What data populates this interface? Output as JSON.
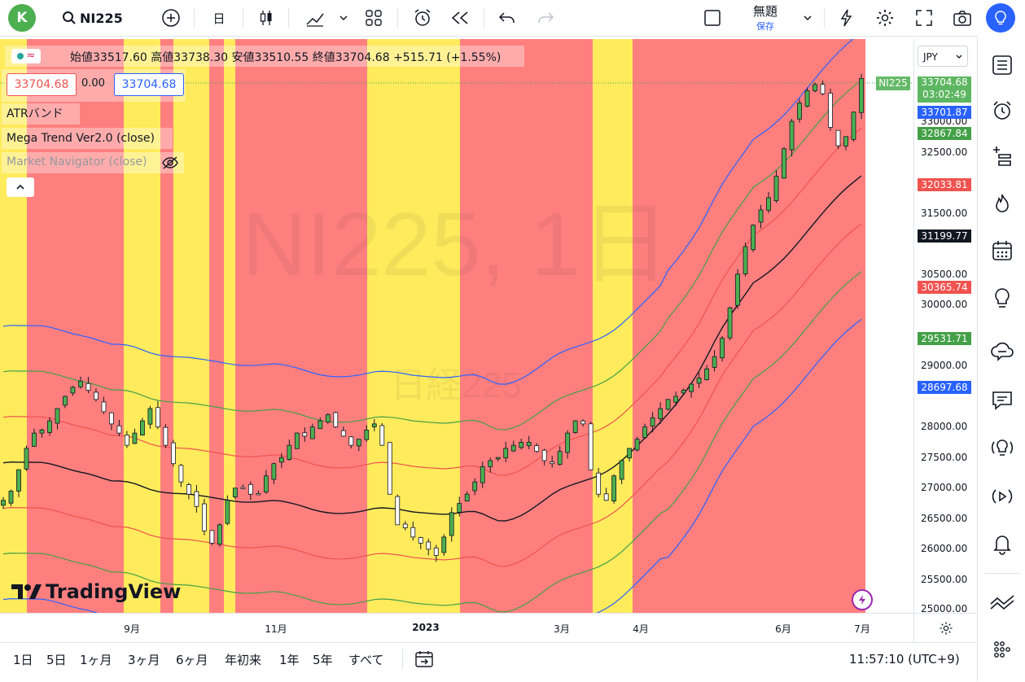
{
  "toolbar": {
    "avatar_letter": "K",
    "symbol": "NI225",
    "interval": "日",
    "layout_name": "無題",
    "save_label": "保存"
  },
  "legend": {
    "ohlc": {
      "open_label": "始値",
      "open": "33517.60",
      "high_label": "高値",
      "high": "33738.30",
      "low_label": "安値",
      "low": "33510.55",
      "close_label": "終値",
      "close": "33704.68",
      "change": "+515.71 (+1.55%)"
    },
    "sell_price": "33704.68",
    "spread": "0.00",
    "buy_price": "33704.68",
    "indicators": [
      "ATRバンド",
      "Mega Trend Ver2.0 (close)",
      "Market Navigator (close)"
    ]
  },
  "watermark": {
    "main": "NI225, 1日",
    "sub": "日経225"
  },
  "currency": "JPY",
  "symbol_tag": "NI225",
  "price_axis": {
    "labels": [
      "33000.00",
      "32500.00",
      "31500.00",
      "30500.00",
      "30000.00",
      "29000.00",
      "28000.00",
      "27500.00",
      "27000.00",
      "26500.00",
      "26000.00",
      "25500.00",
      "25000.00"
    ],
    "last_price": "33704.68",
    "countdown": "03:02:49",
    "tags": [
      {
        "value": "33701.87",
        "color": "#2962ff"
      },
      {
        "value": "32867.84",
        "color": "#43a047"
      },
      {
        "value": "32033.81",
        "color": "#ef5350"
      },
      {
        "value": "31199.77",
        "color": "#131722"
      },
      {
        "value": "30365.74",
        "color": "#ef5350"
      },
      {
        "value": "29531.71",
        "color": "#43a047"
      },
      {
        "value": "28697.68",
        "color": "#2962ff"
      }
    ]
  },
  "time_axis": [
    "9月",
    "11月",
    "2023",
    "3月",
    "4月",
    "6月",
    "7月"
  ],
  "ranges": [
    "1日",
    "5日",
    "1ヶ月",
    "3ヶ月",
    "6ヶ月",
    "年初来",
    "1年",
    "5年",
    "すべて"
  ],
  "clock": "11:57:10 (UTC+9)",
  "logo": "TradingView",
  "chart_data": {
    "type": "candlestick",
    "ylim": [
      25000,
      34000
    ],
    "background_zones": [
      {
        "x0": 0,
        "x1": 33,
        "color": "yellow"
      },
      {
        "x0": 33,
        "x1": 152,
        "color": "red"
      },
      {
        "x0": 152,
        "x1": 197,
        "color": "yellow"
      },
      {
        "x0": 197,
        "x1": 213,
        "color": "red"
      },
      {
        "x0": 213,
        "x1": 257,
        "color": "yellow"
      },
      {
        "x0": 257,
        "x1": 275,
        "color": "red"
      },
      {
        "x0": 275,
        "x1": 289,
        "color": "yellow"
      },
      {
        "x0": 289,
        "x1": 451,
        "color": "red"
      },
      {
        "x0": 451,
        "x1": 565,
        "color": "yellow"
      },
      {
        "x0": 565,
        "x1": 728,
        "color": "red"
      },
      {
        "x0": 728,
        "x1": 777,
        "color": "yellow"
      },
      {
        "x0": 777,
        "x1": 1063,
        "color": "red"
      }
    ],
    "closes": [
      26800,
      26950,
      27300,
      27650,
      27900,
      27950,
      28100,
      28300,
      28500,
      28650,
      28750,
      28600,
      28450,
      28250,
      28050,
      27900,
      27700,
      27900,
      28100,
      28300,
      28000,
      27700,
      27400,
      27100,
      26900,
      26700,
      26300,
      26100,
      26400,
      26800,
      27000,
      27000,
      26900,
      26900,
      27200,
      27400,
      27500,
      27700,
      27900,
      27850,
      28000,
      28100,
      28200,
      28000,
      27850,
      27700,
      27800,
      27950,
      28050,
      27700,
      26900,
      26400,
      26350,
      26200,
      26100,
      26000,
      25900,
      26200,
      26600,
      26750,
      26900,
      27100,
      27350,
      27450,
      27500,
      27650,
      27700,
      27750,
      27750,
      27600,
      27450,
      27400,
      27600,
      27900,
      28100,
      28050,
      27300,
      26900,
      26800,
      27200,
      27450,
      27650,
      27800,
      28000,
      28150,
      28300,
      28450,
      28500,
      28600,
      28700,
      28800,
      28950,
      29150,
      29450,
      29950,
      30500,
      30950,
      31300,
      31550,
      31750,
      32100,
      32550,
      33000,
      33300,
      33500,
      33600,
      33450,
      32900,
      32600,
      32750,
      33150,
      33700
    ]
  }
}
